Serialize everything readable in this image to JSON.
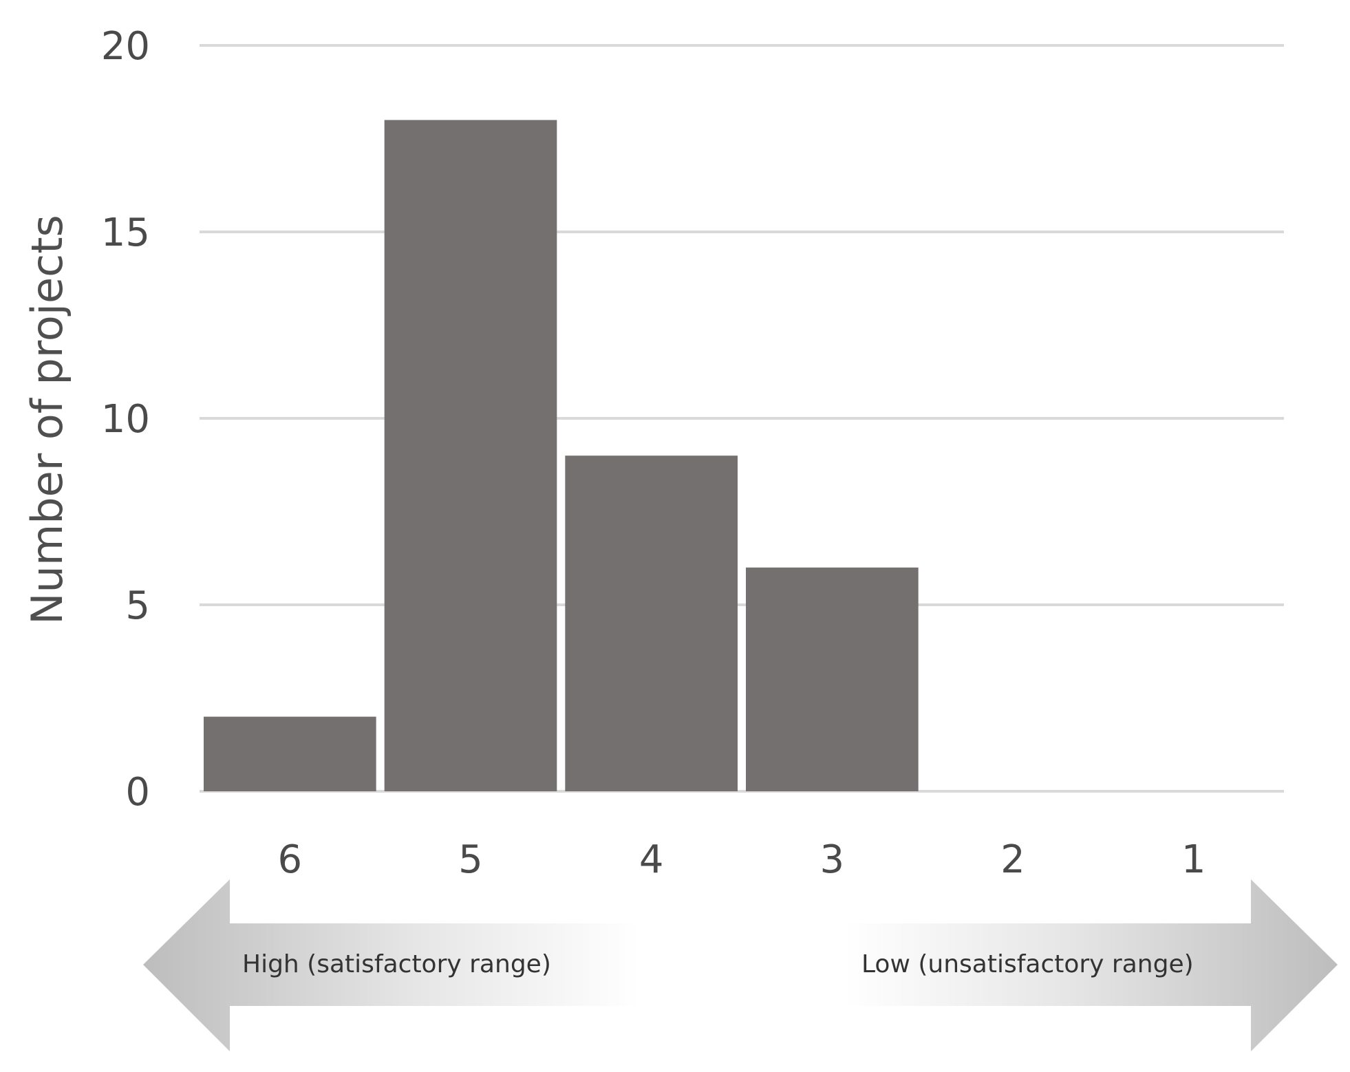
{
  "chart_data": {
    "type": "bar",
    "categories": [
      "6",
      "5",
      "4",
      "3",
      "2",
      "1"
    ],
    "values": [
      2,
      18,
      9,
      6,
      0,
      0
    ],
    "title": "",
    "xlabel": "",
    "ylabel": "Number of projects",
    "ylim": [
      0,
      20
    ],
    "yticks": [
      0,
      5,
      10,
      15,
      20
    ],
    "grid": true,
    "legend": "none",
    "bar_color": "#747070",
    "grid_color": "#d9d9d9",
    "annotations": {
      "high": "High (satisfactory range)",
      "low": "Low (unsatisfactory range)"
    }
  }
}
